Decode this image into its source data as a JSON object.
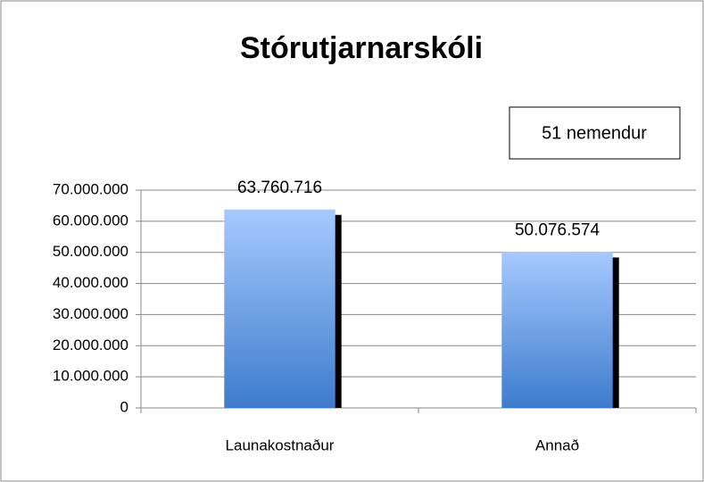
{
  "chart_data": {
    "type": "bar",
    "title": "Stórutjarnarskóli",
    "annotation": "51 nemendur",
    "categories": [
      "Launakostnaður",
      "Annað"
    ],
    "values": [
      63760716,
      50076574
    ],
    "value_labels": [
      "63.760.716",
      "50.076.574"
    ],
    "color": "#4f8ad8",
    "ylim": [
      0,
      70000000
    ],
    "yticks": [
      0,
      {
        "value": 10000000,
        "label": "10.000.000"
      },
      {
        "value": 20000000,
        "label": "20.000.000"
      },
      {
        "value": 30000000,
        "label": "30.000.000"
      },
      {
        "value": 40000000,
        "label": "40.000.000"
      },
      {
        "value": 50000000,
        "label": "50.000.000"
      },
      {
        "value": 60000000,
        "label": "60.000.000"
      },
      {
        "value": 70000000,
        "label": "70.000.000"
      }
    ],
    "grid": true
  }
}
